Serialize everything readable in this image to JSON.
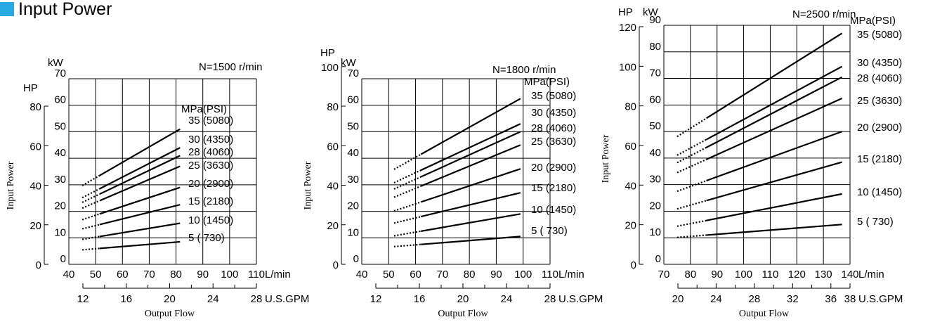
{
  "page": {
    "title": "Input Power"
  },
  "colors": {
    "title_marker": "#27a9e1",
    "lines": "#000000",
    "grid": "#000000"
  },
  "chart_data": [
    {
      "type": "line",
      "speed_label": "N=1500 r/min",
      "pressure_header": "MPa(PSI)",
      "ylabel": "Input Power",
      "xlabel": "Output Flow",
      "x_unit": "L/min",
      "gpm_unit": "U.S.GPM",
      "hp_unit": "HP",
      "kw_unit": "kW",
      "xlim": [
        40,
        110
      ],
      "ylim_kw": [
        0,
        70
      ],
      "x_ticks": [
        40,
        50,
        60,
        70,
        80,
        90,
        100,
        110
      ],
      "kw_ticks": [
        0,
        10,
        20,
        30,
        40,
        50,
        60,
        70
      ],
      "hp_ticks": [
        0,
        20,
        40,
        60,
        80
      ],
      "gpm_ticks": [
        12,
        16,
        20,
        24,
        28
      ],
      "series": [
        {
          "name": "35 (5080)",
          "dash": [
            45,
            51.5
          ],
          "x": [
            51.5,
            81.5
          ],
          "y": [
            33.5,
            51
          ]
        },
        {
          "name": "30 (4350)",
          "dash": [
            45,
            51.5
          ],
          "x": [
            51.5,
            81.5
          ],
          "y": [
            28.5,
            44
          ]
        },
        {
          "name": "28 (4060)",
          "dash": [
            45,
            51.5
          ],
          "x": [
            51.5,
            81.5
          ],
          "y": [
            26.5,
            41
          ]
        },
        {
          "name": "25 (3630)",
          "dash": [
            45,
            51.5
          ],
          "x": [
            51.5,
            81.5
          ],
          "y": [
            24,
            37
          ]
        },
        {
          "name": "20 (2900)",
          "dash": [
            45,
            51.5
          ],
          "x": [
            51.5,
            81.5
          ],
          "y": [
            19,
            29
          ]
        },
        {
          "name": "15 (2180)",
          "dash": [
            45,
            51.5
          ],
          "x": [
            51.5,
            81.5
          ],
          "y": [
            15,
            22.5
          ]
        },
        {
          "name": "10 (1450)",
          "dash": [
            45,
            51.5
          ],
          "x": [
            51.5,
            81.5
          ],
          "y": [
            10.5,
            15.5
          ]
        },
        {
          "name": "5 ( 730)",
          "dash": [
            45,
            51.5
          ],
          "x": [
            51.5,
            81.5
          ],
          "y": [
            6,
            8.5
          ]
        }
      ]
    },
    {
      "type": "line",
      "speed_label": "N=1800 r/min",
      "pressure_header": "MPa(PSI)",
      "ylabel": "Input Power",
      "xlabel": "Output Flow",
      "x_unit": "L/min",
      "gpm_unit": "U.S.GPM",
      "hp_unit": "HP",
      "kw_unit": "kW",
      "xlim": [
        40,
        110
      ],
      "ylim_kw": [
        0,
        70
      ],
      "x_ticks": [
        40,
        50,
        60,
        70,
        80,
        90,
        100,
        110
      ],
      "kw_ticks": [
        0,
        10,
        20,
        30,
        40,
        50,
        60,
        70
      ],
      "hp_ticks": [
        0,
        20,
        40,
        60,
        80,
        100
      ],
      "gpm_ticks": [
        12,
        16,
        20,
        24,
        28
      ],
      "series": [
        {
          "name": "35 (5080)",
          "dash": [
            52,
            62
          ],
          "x": [
            62,
            99
          ],
          "y": [
            41.5,
            62.5
          ]
        },
        {
          "name": "30 (4350)",
          "dash": [
            52,
            62
          ],
          "x": [
            62,
            99
          ],
          "y": [
            35.5,
            53
          ]
        },
        {
          "name": "28 (4060)",
          "dash": [
            52,
            62
          ],
          "x": [
            62,
            99
          ],
          "y": [
            33,
            50
          ]
        },
        {
          "name": "25 (3630)",
          "dash": [
            52,
            62
          ],
          "x": [
            62,
            99
          ],
          "y": [
            29.5,
            45
          ]
        },
        {
          "name": "20 (2900)",
          "dash": [
            52,
            62
          ],
          "x": [
            62,
            99
          ],
          "y": [
            23.5,
            36
          ]
        },
        {
          "name": "15 (2180)",
          "dash": [
            52,
            62
          ],
          "x": [
            62,
            99
          ],
          "y": [
            18,
            27
          ]
        },
        {
          "name": "10 (1450)",
          "dash": [
            52,
            62
          ],
          "x": [
            62,
            99
          ],
          "y": [
            12.5,
            19
          ]
        },
        {
          "name": "5 ( 730)",
          "dash": [
            52,
            62
          ],
          "x": [
            62,
            99
          ],
          "y": [
            7.5,
            10.5
          ]
        }
      ]
    },
    {
      "type": "line",
      "speed_label": "N=2500 r/min",
      "pressure_header": "MPa(PSI)",
      "ylabel": "Input Power",
      "xlabel": "Output Flow",
      "x_unit": "L/min",
      "gpm_unit": "U.S.GPM",
      "hp_unit": "HP",
      "kw_unit": "kW",
      "xlim": [
        70,
        140
      ],
      "ylim_kw": [
        0,
        90
      ],
      "x_ticks": [
        70,
        80,
        90,
        100,
        110,
        120,
        130,
        140
      ],
      "kw_ticks": [
        0,
        10,
        20,
        30,
        40,
        50,
        60,
        70,
        80,
        90
      ],
      "hp_ticks": [
        0,
        20,
        40,
        60,
        80,
        100,
        120
      ],
      "gpm_ticks": [
        20,
        24,
        28,
        32,
        36,
        38
      ],
      "series": [
        {
          "name": "35 (5080)",
          "dash": [
            75,
            86
          ],
          "x": [
            86,
            137
          ],
          "y": [
            55,
            87
          ]
        },
        {
          "name": "30 (4350)",
          "dash": [
            75,
            86
          ],
          "x": [
            86,
            137
          ],
          "y": [
            47,
            74.5
          ]
        },
        {
          "name": "28 (4060)",
          "dash": [
            75,
            86
          ],
          "x": [
            86,
            137
          ],
          "y": [
            44,
            70.5
          ]
        },
        {
          "name": "25 (3630)",
          "dash": [
            75,
            86
          ],
          "x": [
            86,
            137
          ],
          "y": [
            39.5,
            62.5
          ]
        },
        {
          "name": "20 (2900)",
          "dash": [
            75,
            86
          ],
          "x": [
            86,
            137
          ],
          "y": [
            31.5,
            50
          ]
        },
        {
          "name": "15 (2180)",
          "dash": [
            75,
            86
          ],
          "x": [
            86,
            137
          ],
          "y": [
            24,
            38.5
          ]
        },
        {
          "name": "10 (1450)",
          "dash": [
            75,
            86
          ],
          "x": [
            86,
            137
          ],
          "y": [
            16.5,
            26.5
          ]
        },
        {
          "name": "5 ( 730)",
          "dash": [
            75,
            86
          ],
          "x": [
            86,
            137
          ],
          "y": [
            11,
            15
          ]
        }
      ]
    }
  ]
}
